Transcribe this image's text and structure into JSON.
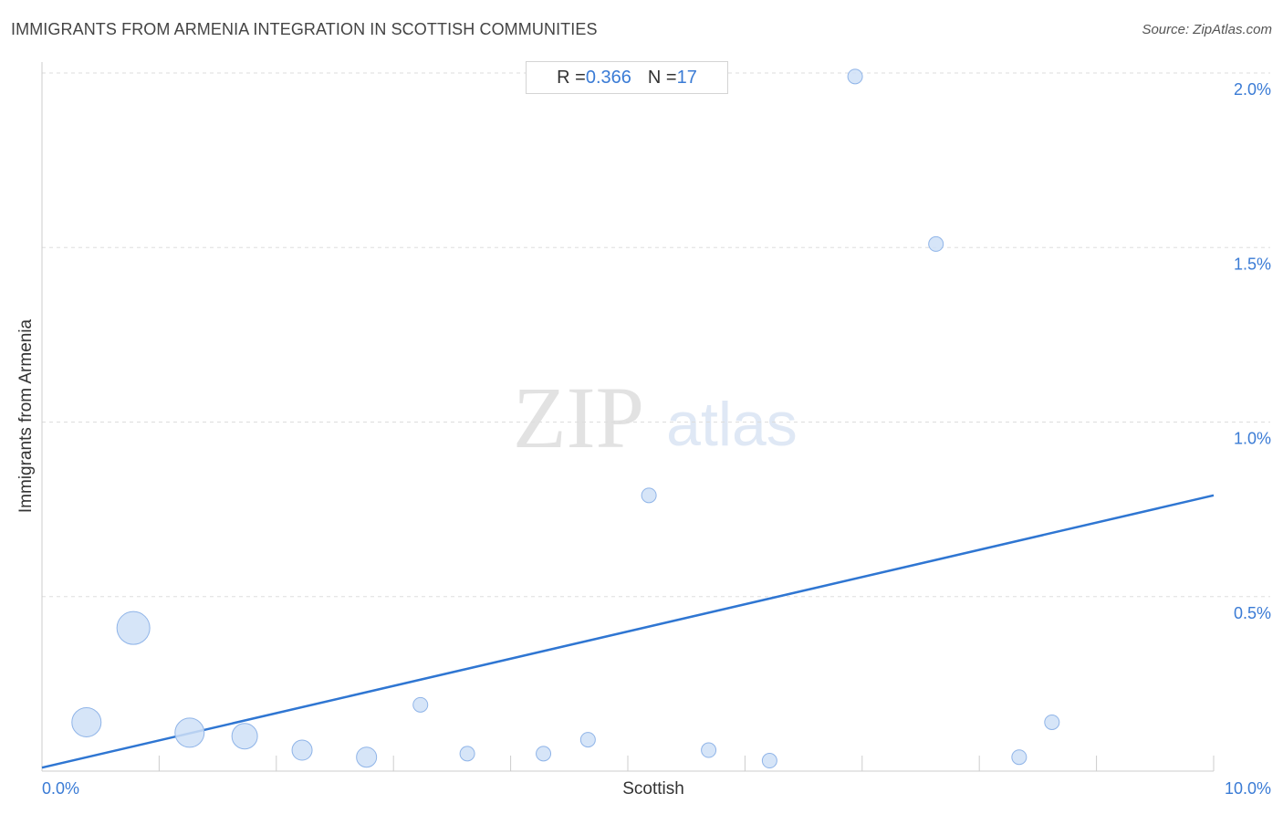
{
  "header": {
    "title": "IMMIGRANTS FROM ARMENIA INTEGRATION IN SCOTTISH COMMUNITIES",
    "source": "Source: ZipAtlas.com"
  },
  "stats": {
    "r_label": "R = ",
    "r_value": "0.366",
    "n_label": "N = ",
    "n_value": "17"
  },
  "watermark": {
    "zip": "ZIP",
    "atlas": "atlas"
  },
  "colors": {
    "point_fill": "#cfe0f7",
    "point_stroke": "#8fb4e8",
    "trend": "#2f76d2",
    "tick_label": "#3a7bd5",
    "grid": "#dddddd"
  },
  "chart_data": {
    "type": "scatter",
    "title": "IMMIGRANTS FROM ARMENIA INTEGRATION IN SCOTTISH COMMUNITIES",
    "xlabel": "Scottish",
    "ylabel": "Immigrants from Armenia",
    "xlim": [
      0,
      10
    ],
    "ylim": [
      0,
      2.0
    ],
    "x_tick_labels": [
      "0.0%",
      "10.0%"
    ],
    "y_ticks": [
      0.5,
      1.0,
      1.5,
      2.0
    ],
    "y_tick_labels": [
      "0.5%",
      "1.0%",
      "1.5%",
      "2.0%"
    ],
    "grid": true,
    "points": [
      {
        "x": 0.38,
        "y": 0.14,
        "size": "large"
      },
      {
        "x": 0.78,
        "y": 0.41,
        "size": "xlarge"
      },
      {
        "x": 1.26,
        "y": 0.11,
        "size": "large"
      },
      {
        "x": 1.73,
        "y": 0.1,
        "size": "medium"
      },
      {
        "x": 2.22,
        "y": 0.06,
        "size": "small"
      },
      {
        "x": 2.77,
        "y": 0.04,
        "size": "small"
      },
      {
        "x": 3.23,
        "y": 0.19,
        "size": "tiny"
      },
      {
        "x": 3.63,
        "y": 0.05,
        "size": "tiny"
      },
      {
        "x": 4.28,
        "y": 0.05,
        "size": "tiny"
      },
      {
        "x": 4.66,
        "y": 0.09,
        "size": "tiny"
      },
      {
        "x": 5.18,
        "y": 0.79,
        "size": "tiny"
      },
      {
        "x": 5.69,
        "y": 0.06,
        "size": "tiny"
      },
      {
        "x": 6.21,
        "y": 0.03,
        "size": "tiny"
      },
      {
        "x": 6.94,
        "y": 1.99,
        "size": "tiny"
      },
      {
        "x": 7.63,
        "y": 1.51,
        "size": "tiny"
      },
      {
        "x": 8.34,
        "y": 0.04,
        "size": "tiny"
      },
      {
        "x": 8.62,
        "y": 0.14,
        "size": "tiny"
      }
    ],
    "trendline": {
      "x0": 0,
      "y0": 0.01,
      "x1": 10,
      "y1": 0.79
    }
  }
}
